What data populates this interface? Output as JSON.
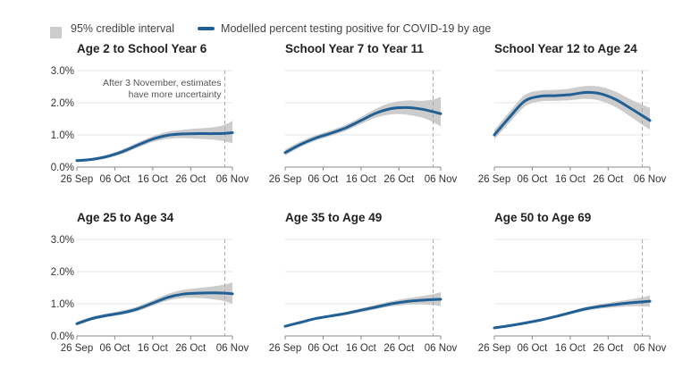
{
  "legend": {
    "ci_label": "95% credible interval",
    "line_label": "Modelled percent testing positive for COVID-19 by age"
  },
  "colors": {
    "line": "#206095",
    "band": "#cccccc",
    "axis": "#888888",
    "grid": "#e6e6e6",
    "marker": "#aaaaaa"
  },
  "chart_data": [
    {
      "type": "line",
      "title": "Age 2 to School Year 6",
      "annotation": "After 3 November, estimates have more uncertainty",
      "annotation_lines": [
        "After 3 November, estimates",
        "have more uncertainty"
      ],
      "x_ticks": [
        "26 Sep",
        "06 Oct",
        "16 Oct",
        "26 Oct",
        "06 Nov"
      ],
      "y_ticks": [
        "0.0%",
        "1.0%",
        "2.0%",
        "3.0%"
      ],
      "ylim": [
        0,
        3
      ],
      "x": [
        0,
        4,
        8,
        12,
        16,
        20,
        24,
        28,
        32,
        36,
        39,
        41
      ],
      "y": [
        0.2,
        0.24,
        0.33,
        0.48,
        0.68,
        0.87,
        0.99,
        1.03,
        1.04,
        1.04,
        1.05,
        1.07
      ],
      "lower": [
        0.16,
        0.2,
        0.28,
        0.41,
        0.6,
        0.78,
        0.88,
        0.9,
        0.88,
        0.85,
        0.8,
        0.74
      ],
      "upper": [
        0.24,
        0.28,
        0.38,
        0.55,
        0.76,
        0.96,
        1.1,
        1.16,
        1.2,
        1.24,
        1.32,
        1.44
      ]
    },
    {
      "type": "line",
      "title": "School Year 7 to Year 11",
      "x_ticks": [
        "26 Sep",
        "06 Oct",
        "16 Oct",
        "26 Oct",
        "06 Nov"
      ],
      "y_ticks": [
        "0.0%",
        "1.0%",
        "2.0%",
        "3.0%"
      ],
      "ylim": [
        0,
        3
      ],
      "x": [
        0,
        4,
        8,
        12,
        16,
        20,
        24,
        28,
        32,
        36,
        39,
        41
      ],
      "y": [
        0.45,
        0.7,
        0.9,
        1.05,
        1.22,
        1.45,
        1.68,
        1.82,
        1.85,
        1.8,
        1.72,
        1.66
      ],
      "lower": [
        0.36,
        0.62,
        0.82,
        0.97,
        1.13,
        1.34,
        1.54,
        1.64,
        1.63,
        1.54,
        1.4,
        1.26
      ],
      "upper": [
        0.55,
        0.79,
        0.99,
        1.14,
        1.32,
        1.56,
        1.82,
        2.0,
        2.07,
        2.06,
        2.1,
        2.18
      ]
    },
    {
      "type": "line",
      "title": "School Year 12 to Age 24",
      "x_ticks": [
        "26 Sep",
        "06 Oct",
        "16 Oct",
        "26 Oct",
        "06 Nov"
      ],
      "y_ticks": [
        "0.0%",
        "1.0%",
        "2.0%",
        "3.0%"
      ],
      "ylim": [
        0,
        3
      ],
      "x": [
        0,
        4,
        8,
        12,
        16,
        20,
        24,
        28,
        32,
        36,
        39,
        41
      ],
      "y": [
        1.0,
        1.55,
        2.05,
        2.2,
        2.22,
        2.25,
        2.32,
        2.28,
        2.1,
        1.82,
        1.6,
        1.45
      ],
      "lower": [
        0.86,
        1.38,
        1.88,
        2.04,
        2.06,
        2.08,
        2.12,
        2.06,
        1.86,
        1.56,
        1.32,
        1.16
      ],
      "upper": [
        1.15,
        1.72,
        2.24,
        2.38,
        2.4,
        2.44,
        2.52,
        2.5,
        2.34,
        2.1,
        1.94,
        1.84
      ]
    },
    {
      "type": "line",
      "title": "Age 25 to Age 34",
      "x_ticks": [
        "26 Sep",
        "06 Oct",
        "16 Oct",
        "26 Oct",
        "06 Nov"
      ],
      "y_ticks": [
        "0.0%",
        "1.0%",
        "2.0%",
        "3.0%"
      ],
      "ylim": [
        0,
        3
      ],
      "x": [
        0,
        4,
        8,
        12,
        16,
        20,
        24,
        28,
        32,
        36,
        39,
        41
      ],
      "y": [
        0.38,
        0.54,
        0.64,
        0.72,
        0.84,
        1.02,
        1.2,
        1.3,
        1.33,
        1.34,
        1.33,
        1.31
      ],
      "lower": [
        0.33,
        0.49,
        0.59,
        0.66,
        0.77,
        0.94,
        1.1,
        1.18,
        1.18,
        1.14,
        1.08,
        1.0
      ],
      "upper": [
        0.44,
        0.6,
        0.7,
        0.79,
        0.92,
        1.11,
        1.31,
        1.43,
        1.49,
        1.54,
        1.6,
        1.66
      ]
    },
    {
      "type": "line",
      "title": "Age 35 to Age 49",
      "x_ticks": [
        "26 Sep",
        "06 Oct",
        "16 Oct",
        "26 Oct",
        "06 Nov"
      ],
      "y_ticks": [
        "0.0%",
        "1.0%",
        "2.0%",
        "3.0%"
      ],
      "ylim": [
        0,
        3
      ],
      "x": [
        0,
        4,
        8,
        12,
        16,
        20,
        24,
        28,
        32,
        36,
        39,
        41
      ],
      "y": [
        0.3,
        0.42,
        0.54,
        0.62,
        0.7,
        0.8,
        0.9,
        1.0,
        1.07,
        1.11,
        1.13,
        1.14
      ],
      "lower": [
        0.27,
        0.39,
        0.5,
        0.58,
        0.65,
        0.74,
        0.83,
        0.92,
        0.97,
        0.98,
        0.96,
        0.93
      ],
      "upper": [
        0.34,
        0.46,
        0.58,
        0.66,
        0.75,
        0.86,
        0.97,
        1.08,
        1.17,
        1.24,
        1.3,
        1.36
      ]
    },
    {
      "type": "line",
      "title": "Age 50 to Age 69",
      "x_ticks": [
        "26 Sep",
        "06 Oct",
        "16 Oct",
        "26 Oct",
        "06 Nov"
      ],
      "y_ticks": [
        "0.0%",
        "1.0%",
        "2.0%",
        "3.0%"
      ],
      "ylim": [
        0,
        3
      ],
      "x": [
        0,
        4,
        8,
        12,
        16,
        20,
        24,
        28,
        32,
        36,
        39,
        41
      ],
      "y": [
        0.25,
        0.32,
        0.4,
        0.49,
        0.6,
        0.72,
        0.84,
        0.92,
        0.98,
        1.03,
        1.06,
        1.08
      ],
      "lower": [
        0.22,
        0.29,
        0.37,
        0.45,
        0.56,
        0.67,
        0.78,
        0.85,
        0.89,
        0.92,
        0.92,
        0.91
      ],
      "upper": [
        0.28,
        0.35,
        0.44,
        0.53,
        0.64,
        0.77,
        0.9,
        0.99,
        1.07,
        1.14,
        1.2,
        1.26
      ]
    }
  ]
}
